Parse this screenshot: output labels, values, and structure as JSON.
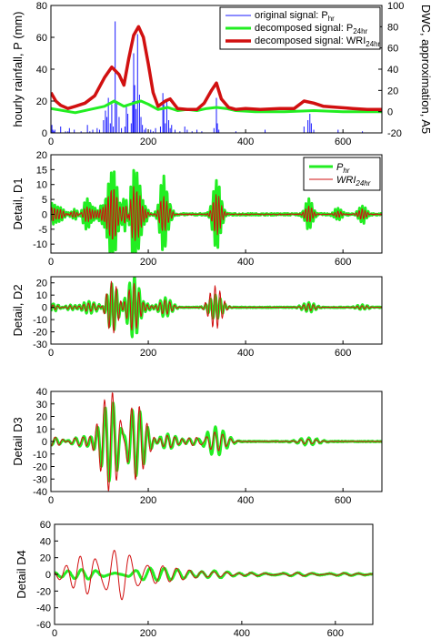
{
  "chart_data": [
    {
      "type": "line",
      "panel": "top",
      "ylabel": "hourly rainfall, P (mm)",
      "ylabel_right": "DWC, approximation, A5",
      "xlim": [
        0,
        680
      ],
      "ylim": [
        0,
        80
      ],
      "ylim_right": [
        -20,
        100
      ],
      "xticks": [
        "0",
        "200",
        "400",
        "600"
      ],
      "yticks": [
        "0",
        "20",
        "40",
        "60",
        "80"
      ],
      "yticks_right": [
        "-20",
        "0",
        "20",
        "40",
        "60",
        "80",
        "100"
      ],
      "legend_position": "top-right",
      "legend": [
        {
          "base": "original signal: P",
          "sub": "hr"
        },
        {
          "base": "decomposed signal: P",
          "sub": "24hr"
        },
        {
          "base": "decomposed signal: WRI",
          "sub": "24hr"
        }
      ],
      "series": [
        {
          "name": "original signal: P_hr",
          "color": "#1a1aff",
          "axis": "left",
          "kind": "spikes",
          "x": [
            2,
            4,
            6,
            8,
            20,
            30,
            35,
            38,
            48,
            62,
            75,
            80,
            86,
            95,
            100,
            108,
            112,
            115,
            118,
            122,
            125,
            128,
            132,
            135,
            140,
            145,
            152,
            155,
            158,
            165,
            168,
            170,
            172,
            175,
            178,
            182,
            185,
            188,
            192,
            195,
            205,
            210,
            215,
            225,
            230,
            232,
            235,
            238,
            242,
            245,
            248,
            255,
            265,
            275,
            280,
            290,
            300,
            310,
            335,
            340,
            342,
            345,
            380,
            440,
            520,
            528,
            532,
            535,
            540,
            590,
            640
          ],
          "y": [
            5,
            2,
            1,
            2,
            4,
            1,
            1,
            3,
            2,
            1,
            5,
            1,
            2,
            3,
            2,
            8,
            14,
            10,
            22,
            6,
            18,
            4,
            70,
            20,
            10,
            3,
            4,
            18,
            12,
            6,
            20,
            50,
            30,
            15,
            62,
            24,
            10,
            5,
            2,
            3,
            2,
            1,
            3,
            4,
            25,
            18,
            6,
            20,
            8,
            3,
            5,
            2,
            1,
            4,
            2,
            1,
            2,
            1,
            3,
            22,
            6,
            2,
            1,
            2,
            4,
            8,
            12,
            6,
            2,
            2,
            1
          ]
        },
        {
          "name": "decomposed signal: P_24hr",
          "color": "#22ee22",
          "axis": "right",
          "x": [
            0,
            50,
            80,
            110,
            130,
            150,
            170,
            185,
            200,
            220,
            240,
            260,
            280,
            300,
            320,
            340,
            360,
            380,
            420,
            480,
            540,
            600,
            680
          ],
          "y": [
            3,
            -1,
            2,
            5,
            10,
            5,
            8,
            10,
            7,
            2,
            4,
            1,
            2,
            1,
            3,
            4,
            3,
            1,
            0,
            0,
            1,
            0,
            0
          ]
        },
        {
          "name": "decomposed signal: WRI_24hr",
          "color": "#d11010",
          "axis": "right",
          "x": [
            0,
            10,
            20,
            35,
            50,
            70,
            90,
            110,
            125,
            140,
            150,
            160,
            170,
            180,
            190,
            200,
            210,
            220,
            235,
            245,
            260,
            280,
            300,
            315,
            330,
            340,
            350,
            365,
            380,
            400,
            430,
            470,
            500,
            520,
            540,
            560,
            590,
            620,
            650,
            680
          ],
          "y": [
            18,
            10,
            6,
            3,
            5,
            8,
            15,
            32,
            42,
            35,
            25,
            50,
            72,
            80,
            70,
            45,
            18,
            5,
            10,
            12,
            3,
            2,
            2,
            8,
            20,
            27,
            12,
            4,
            2,
            3,
            2,
            3,
            3,
            10,
            8,
            5,
            4,
            3,
            2,
            2
          ]
        }
      ]
    },
    {
      "type": "line",
      "panel": "D1",
      "ylabel": "Detail, D1",
      "xlim": [
        0,
        680
      ],
      "ylim": [
        -13,
        20
      ],
      "xticks": [
        "0",
        "200",
        "400",
        "600"
      ],
      "yticks": [
        "-10",
        "-5",
        "0",
        "5",
        "10",
        "15",
        "20"
      ],
      "legend_position": "top-right",
      "legend": [
        {
          "base": "P",
          "sub": "hr",
          "italic": true
        },
        {
          "base": "WRI",
          "sub": "24hr",
          "italic": true
        }
      ],
      "series": [
        {
          "name": "P_hr",
          "color": "#22ee22"
        },
        {
          "name": "WRI_24hr",
          "color": "#d11010"
        }
      ],
      "bursts": [
        {
          "x": 2,
          "amp": 3.5,
          "amp_red": 2.5
        },
        {
          "x": 20,
          "amp": 2.0,
          "amp_red": 1.5
        },
        {
          "x": 48,
          "amp": 1.5,
          "amp_red": 1.0
        },
        {
          "x": 75,
          "amp": 6.0,
          "amp_red": 3.0
        },
        {
          "x": 85,
          "amp": 3.0,
          "amp_red": 2.0
        },
        {
          "x": 108,
          "amp": 4.0,
          "amp_red": 3.0
        },
        {
          "x": 118,
          "amp": 8.0,
          "amp_red": 5.0
        },
        {
          "x": 130,
          "amp": 12.0,
          "amp_red": 8.0
        },
        {
          "x": 155,
          "amp": 7.0,
          "amp_red": 4.0
        },
        {
          "x": 170,
          "amp": 19.0,
          "amp_red": 11.0
        },
        {
          "x": 178,
          "amp": 14.0,
          "amp_red": 9.0
        },
        {
          "x": 188,
          "amp": 5.0,
          "amp_red": 3.0
        },
        {
          "x": 232,
          "amp": 14.0,
          "amp_red": 7.0
        },
        {
          "x": 240,
          "amp": 5.0,
          "amp_red": 3.0
        },
        {
          "x": 340,
          "amp": 10.0,
          "amp_red": 6.0
        },
        {
          "x": 345,
          "amp": 4.0,
          "amp_red": 2.5
        },
        {
          "x": 530,
          "amp": 5.0,
          "amp_red": 3.0
        },
        {
          "x": 590,
          "amp": 2.0,
          "amp_red": 1.0
        },
        {
          "x": 640,
          "amp": 3.0,
          "amp_red": 2.0
        }
      ]
    },
    {
      "type": "line",
      "panel": "D2",
      "ylabel": "Detail, D2",
      "xlim": [
        0,
        680
      ],
      "ylim": [
        -30,
        25
      ],
      "xticks": [
        "0",
        "200",
        "400",
        "600"
      ],
      "yticks": [
        "-30",
        "-20",
        "-10",
        "0",
        "10",
        "20"
      ],
      "series": [
        {
          "name": "P_hr",
          "color": "#22ee22"
        },
        {
          "name": "WRI_24hr",
          "color": "#d11010"
        }
      ],
      "bursts": [
        {
          "x": 5,
          "amp": 3.0,
          "amp_red": 2.0
        },
        {
          "x": 40,
          "amp": 2.0,
          "amp_red": 1.5
        },
        {
          "x": 78,
          "amp": 5.0,
          "amp_red": 3.5
        },
        {
          "x": 110,
          "amp": 6.0,
          "amp_red": 5.0
        },
        {
          "x": 125,
          "amp": 22.0,
          "amp_red": 24.0
        },
        {
          "x": 160,
          "amp": 6.0,
          "amp_red": 4.0
        },
        {
          "x": 172,
          "amp": 26.0,
          "amp_red": 20.0
        },
        {
          "x": 188,
          "amp": 7.0,
          "amp_red": 5.0
        },
        {
          "x": 235,
          "amp": 8.0,
          "amp_red": 6.0
        },
        {
          "x": 338,
          "amp": 10.0,
          "amp_red": 18.0
        },
        {
          "x": 530,
          "amp": 4.0,
          "amp_red": 3.0
        },
        {
          "x": 640,
          "amp": 2.0,
          "amp_red": 1.5
        }
      ]
    },
    {
      "type": "line",
      "panel": "D3",
      "ylabel": "Detail D3",
      "xlim": [
        0,
        680
      ],
      "ylim": [
        -40,
        40
      ],
      "xticks": [
        "0",
        "200",
        "400",
        "600"
      ],
      "yticks": [
        "-40",
        "-30",
        "-20",
        "-10",
        "0",
        "10",
        "20",
        "30",
        "40"
      ],
      "series": [
        {
          "name": "P_hr",
          "color": "#22ee22"
        },
        {
          "name": "WRI_24hr",
          "color": "#d11010"
        }
      ],
      "bursts": [
        {
          "x": 10,
          "amp": 3.0,
          "amp_red": 4.0
        },
        {
          "x": 50,
          "amp": 2.5,
          "amp_red": 3.0
        },
        {
          "x": 85,
          "amp": 6.0,
          "amp_red": 5.0
        },
        {
          "x": 110,
          "amp": 12.0,
          "amp_red": 16.0
        },
        {
          "x": 128,
          "amp": 28.0,
          "amp_red": 34.0
        },
        {
          "x": 148,
          "amp": 6.0,
          "amp_red": 8.0
        },
        {
          "x": 168,
          "amp": 22.0,
          "amp_red": 24.0
        },
        {
          "x": 182,
          "amp": 10.0,
          "amp_red": 12.0
        },
        {
          "x": 240,
          "amp": 6.0,
          "amp_red": 5.0
        },
        {
          "x": 300,
          "amp": 3.0,
          "amp_red": 4.0
        },
        {
          "x": 338,
          "amp": 12.0,
          "amp_red": 8.0
        },
        {
          "x": 530,
          "amp": 3.0,
          "amp_red": 2.0
        }
      ]
    },
    {
      "type": "line",
      "panel": "D4",
      "ylabel": "Detail D4",
      "xlim": [
        0,
        680
      ],
      "ylim": [
        -60,
        60
      ],
      "xticks": [
        "0",
        "200",
        "400",
        "600"
      ],
      "yticks": [
        "-60",
        "-40",
        "-20",
        "0",
        "20",
        "40",
        "60"
      ],
      "series": [
        {
          "name": "P_hr",
          "color": "#22ee22"
        },
        {
          "name": "WRI_24hr",
          "color": "#d11010"
        }
      ],
      "bursts": [
        {
          "x": 30,
          "amp": 3.0,
          "amp_red": 4.0,
          "period": 30
        },
        {
          "x": 85,
          "amp": 6.0,
          "amp_red": 32.0,
          "period": 30
        },
        {
          "x": 130,
          "amp": 7.0,
          "amp_red": 50.0,
          "period": 32
        },
        {
          "x": 175,
          "amp": 6.0,
          "amp_red": 12.0,
          "period": 30
        },
        {
          "x": 235,
          "amp": 5.0,
          "amp_red": 6.0,
          "period": 30
        },
        {
          "x": 290,
          "amp": 4.0,
          "amp_red": 5.0,
          "period": 30
        },
        {
          "x": 340,
          "amp": 5.0,
          "amp_red": 4.0,
          "period": 30
        },
        {
          "x": 420,
          "amp": 2.0,
          "amp_red": 2.0,
          "period": 30
        },
        {
          "x": 520,
          "amp": 2.0,
          "amp_red": 2.0,
          "period": 30
        },
        {
          "x": 620,
          "amp": 1.5,
          "amp_red": 1.5,
          "period": 30
        }
      ]
    }
  ]
}
